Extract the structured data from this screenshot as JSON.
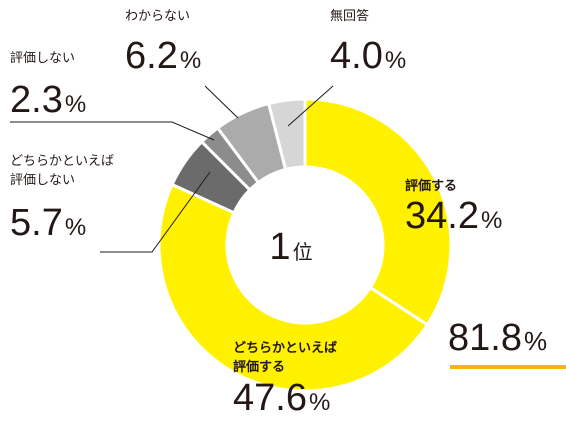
{
  "chart_data": {
    "type": "donut",
    "categories": [
      "評価する",
      "どちらかといえば評価する",
      "どちらかといえば評価しない",
      "評価しない",
      "わからない",
      "無回答"
    ],
    "values": [
      34.2,
      47.6,
      5.7,
      2.3,
      6.2,
      4.0
    ],
    "value_labels": [
      "34.2%",
      "47.6%",
      "5.7%",
      "2.3%",
      "6.2%",
      "4.0%"
    ],
    "colors": [
      "#fff100",
      "#fff100",
      "#6b6b6b",
      "#8c8c8c",
      "#ababab",
      "#d6d6d6"
    ],
    "center_label": "1位",
    "annotation": "81.8%",
    "annotation_color": "#f5b800"
  }
}
